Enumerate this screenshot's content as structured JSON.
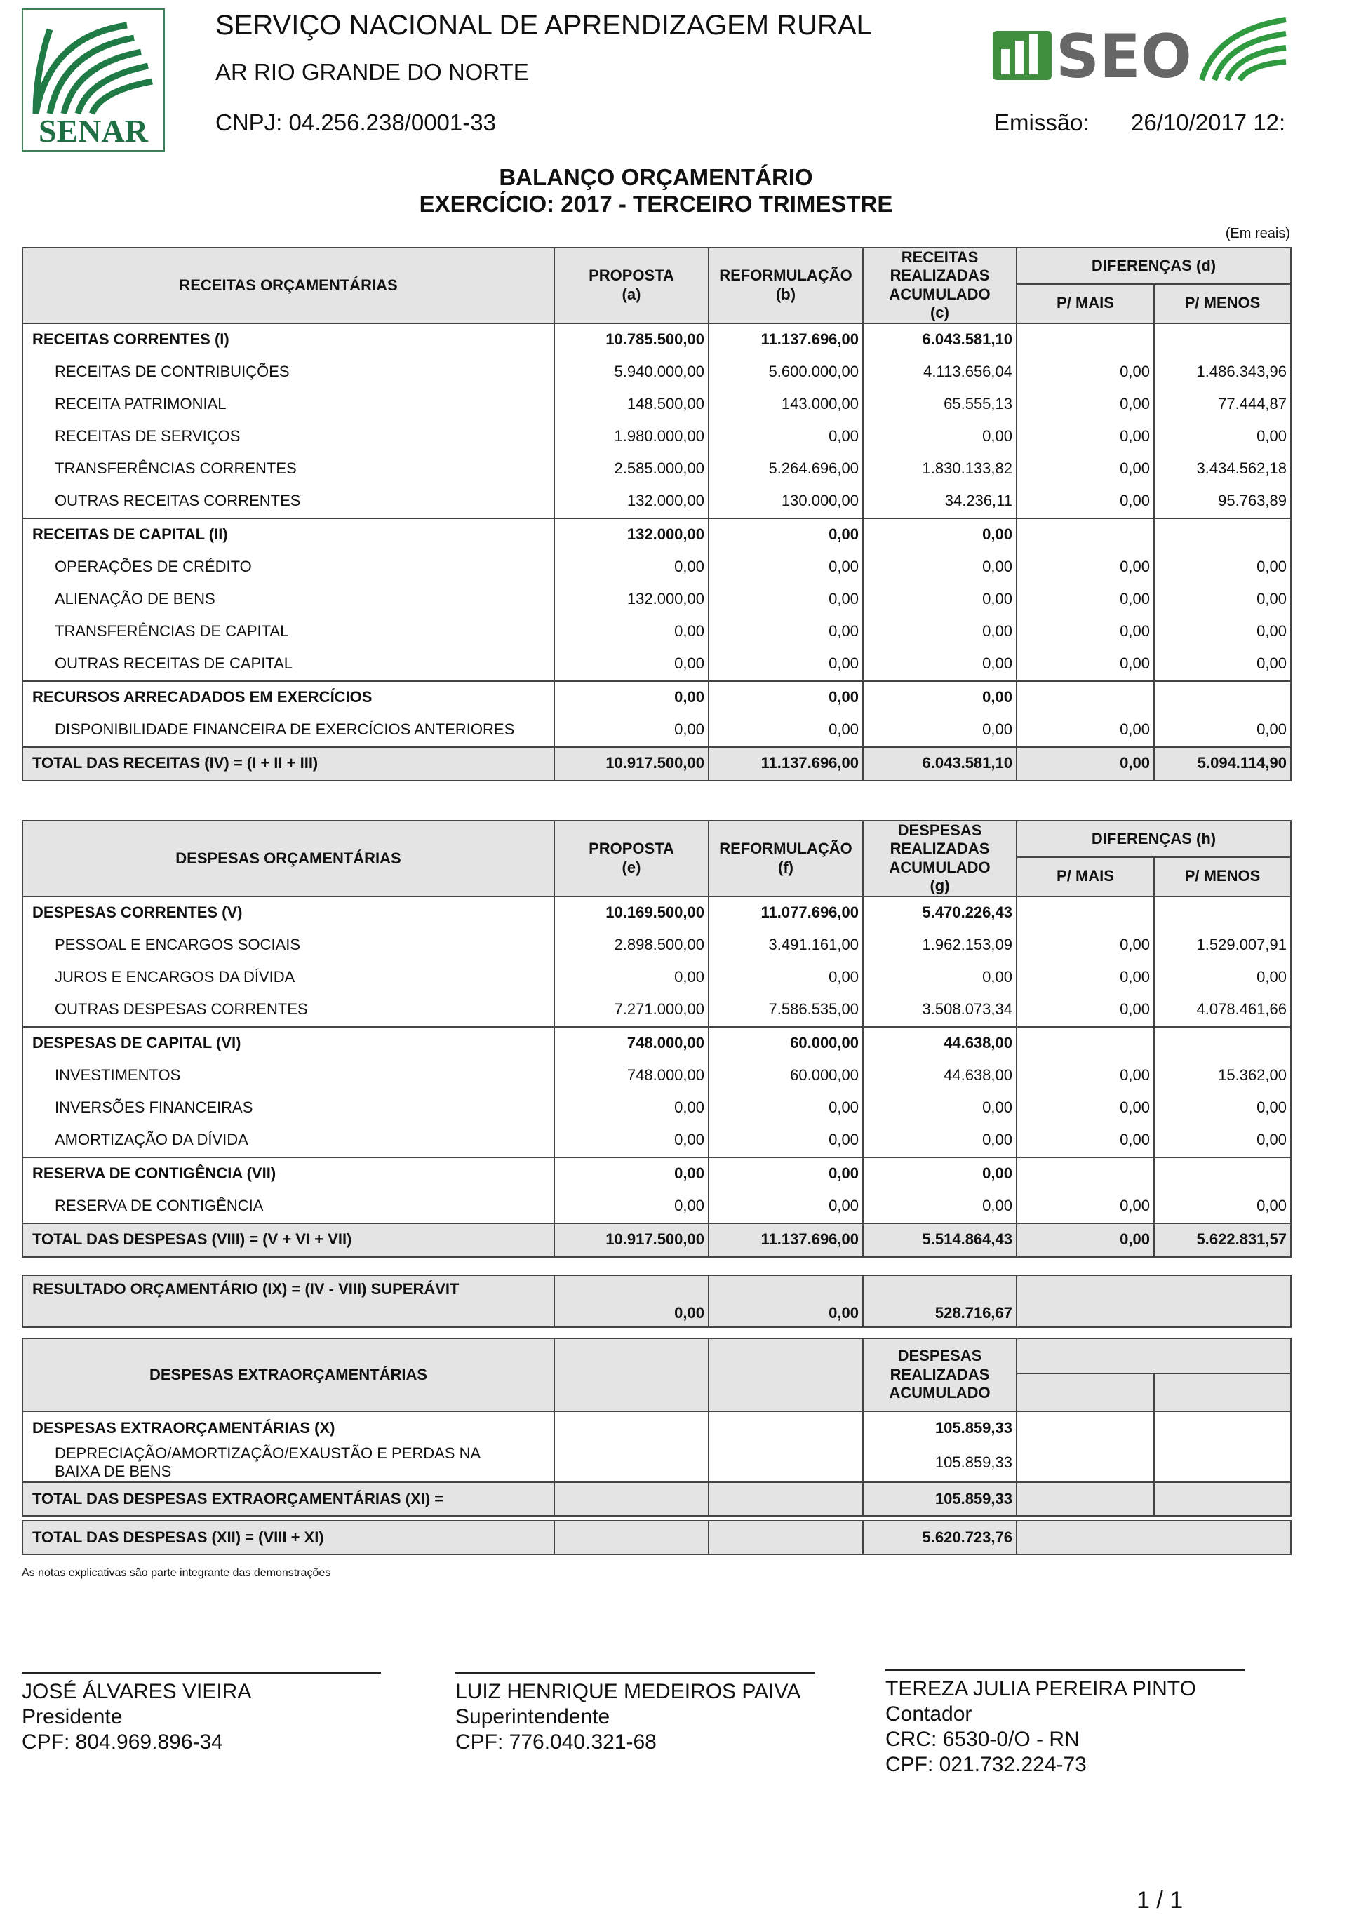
{
  "header": {
    "logo_left": "SENAR",
    "logo_right": "SEO",
    "org": "SERVIÇO NACIONAL DE APRENDIZAGEM RURAL",
    "unit": "AR RIO GRANDE DO NORTE",
    "cnpj": "CNPJ: 04.256.238/0001-33",
    "emissao_label": "Emissão:",
    "emissao": "26/10/2017 12:"
  },
  "title": "BALANÇO ORÇAMENTÁRIO",
  "subtitle": "EXERCÍCIO: 2017 - TERCEIRO TRIMESTRE",
  "unit_note": "(Em reais)",
  "receitas": {
    "header": {
      "label": "RECEITAS ORÇAMENTÁRIAS",
      "cols": [
        "PROPOSTA\n(a)",
        "REFORMULAÇÃO\n(b)",
        "RECEITAS\nREALIZADAS\nACUMULADO\n(c)"
      ],
      "group": "DIFERENÇAS (d)",
      "sub": [
        "P/ MAIS",
        "P/ MENOS"
      ]
    },
    "rows": [
      {
        "bold": true,
        "cells": [
          "RECEITAS CORRENTES (I)",
          "10.785.500,00",
          "11.137.696,00",
          "6.043.581,10",
          null,
          null
        ]
      },
      {
        "cells": [
          "RECEITAS DE CONTRIBUIÇÕES",
          "5.940.000,00",
          "5.600.000,00",
          "4.113.656,04",
          "0,00",
          "1.486.343,96"
        ]
      },
      {
        "cells": [
          "RECEITA PATRIMONIAL",
          "148.500,00",
          "143.000,00",
          "65.555,13",
          "0,00",
          "77.444,87"
        ]
      },
      {
        "cells": [
          "RECEITAS DE SERVIÇOS",
          "1.980.000,00",
          "0,00",
          "0,00",
          "0,00",
          "0,00"
        ]
      },
      {
        "cells": [
          "TRANSFERÊNCIAS CORRENTES",
          "2.585.000,00",
          "5.264.696,00",
          "1.830.133,82",
          "0,00",
          "3.434.562,18"
        ]
      },
      {
        "cells": [
          "OUTRAS RECEITAS CORRENTES",
          "132.000,00",
          "130.000,00",
          "34.236,11",
          "0,00",
          "95.763,89"
        ]
      },
      {
        "bold": true,
        "cells": [
          "RECEITAS DE CAPITAL (II)",
          "132.000,00",
          "0,00",
          "0,00",
          null,
          null
        ]
      },
      {
        "cells": [
          "OPERAÇÕES DE CRÉDITO",
          "0,00",
          "0,00",
          "0,00",
          "0,00",
          "0,00"
        ]
      },
      {
        "cells": [
          "ALIENAÇÃO DE BENS",
          "132.000,00",
          "0,00",
          "0,00",
          "0,00",
          "0,00"
        ]
      },
      {
        "cells": [
          "TRANSFERÊNCIAS DE CAPITAL",
          "0,00",
          "0,00",
          "0,00",
          "0,00",
          "0,00"
        ]
      },
      {
        "cells": [
          "OUTRAS RECEITAS DE CAPITAL",
          "0,00",
          "0,00",
          "0,00",
          "0,00",
          "0,00"
        ]
      },
      {
        "bold": true,
        "cells": [
          "RECURSOS ARRECADADOS EM EXERCÍCIOS",
          "0,00",
          "0,00",
          "0,00",
          null,
          null
        ]
      },
      {
        "cells": [
          "DISPONIBILIDADE FINANCEIRA DE EXERCÍCIOS ANTERIORES",
          "0,00",
          "0,00",
          "0,00",
          "0,00",
          "0,00"
        ]
      },
      {
        "bold": true,
        "shaded": true,
        "cells": [
          "TOTAL DAS RECEITAS (IV) = (I + II + III)",
          "10.917.500,00",
          "11.137.696,00",
          "6.043.581,10",
          "0,00",
          "5.094.114,90"
        ]
      }
    ]
  },
  "despesas": {
    "header": {
      "label": "DESPESAS ORÇAMENTÁRIAS",
      "cols": [
        "PROPOSTA\n(e)",
        "REFORMULAÇÃO\n(f)",
        "DESPESAS\nREALIZADAS\nACUMULADO\n(g)"
      ],
      "group": "DIFERENÇAS (h)",
      "sub": [
        "P/ MAIS",
        "P/ MENOS"
      ]
    },
    "rows": [
      {
        "bold": true,
        "cells": [
          "DESPESAS CORRENTES (V)",
          "10.169.500,00",
          "11.077.696,00",
          "5.470.226,43",
          null,
          null
        ]
      },
      {
        "cells": [
          "PESSOAL E ENCARGOS SOCIAIS",
          "2.898.500,00",
          "3.491.161,00",
          "1.962.153,09",
          "0,00",
          "1.529.007,91"
        ]
      },
      {
        "cells": [
          "JUROS E ENCARGOS DA DÍVIDA",
          "0,00",
          "0,00",
          "0,00",
          "0,00",
          "0,00"
        ]
      },
      {
        "cells": [
          "OUTRAS DESPESAS CORRENTES",
          "7.271.000,00",
          "7.586.535,00",
          "3.508.073,34",
          "0,00",
          "4.078.461,66"
        ]
      },
      {
        "bold": true,
        "cells": [
          "DESPESAS DE CAPITAL (VI)",
          "748.000,00",
          "60.000,00",
          "44.638,00",
          null,
          null
        ]
      },
      {
        "cells": [
          "INVESTIMENTOS",
          "748.000,00",
          "60.000,00",
          "44.638,00",
          "0,00",
          "15.362,00"
        ]
      },
      {
        "cells": [
          "INVERSÕES FINANCEIRAS",
          "0,00",
          "0,00",
          "0,00",
          "0,00",
          "0,00"
        ]
      },
      {
        "cells": [
          "AMORTIZAÇÃO DA DÍVIDA",
          "0,00",
          "0,00",
          "0,00",
          "0,00",
          "0,00"
        ]
      },
      {
        "bold": true,
        "cells": [
          "RESERVA DE CONTIGÊNCIA (VII)",
          "0,00",
          "0,00",
          "0,00",
          null,
          null
        ]
      },
      {
        "cells": [
          "RESERVA DE CONTIGÊNCIA",
          "0,00",
          "0,00",
          "0,00",
          "0,00",
          "0,00"
        ]
      },
      {
        "bold": true,
        "shaded": true,
        "cells": [
          "TOTAL DAS DESPESAS (VIII) = (V + VI + VII)",
          "10.917.500,00",
          "11.137.696,00",
          "5.514.864,43",
          "0,00",
          "5.622.831,57"
        ]
      }
    ]
  },
  "resultado": {
    "rows": [
      {
        "bold": true,
        "shaded": true,
        "cells": [
          "RESULTADO ORÇAMENTÁRIO (IX) = (IV - VIII)  SUPERÁVIT",
          "0,00",
          "0,00",
          "528.716,67",
          null,
          null
        ]
      }
    ]
  },
  "extra": {
    "header": {
      "label": "DESPESAS EXTRAORÇAMENTÁRIAS",
      "cols": [
        null,
        null,
        "DESPESAS\nREALIZADAS\nACUMULADO"
      ],
      "group": null,
      "sub": [
        null,
        null
      ]
    },
    "rows": [
      {
        "bold": true,
        "cells": [
          "DESPESAS EXTRAORÇAMENTÁRIAS (X)",
          null,
          null,
          "105.859,33",
          null,
          null
        ]
      },
      {
        "cells": [
          "DEPRECIAÇÃO/AMORTIZAÇÃO/EXAUSTÃO E PERDAS NA\nBAIXA DE BENS",
          null,
          null,
          "105.859,33",
          null,
          null
        ]
      },
      {
        "bold": true,
        "shaded": true,
        "cells": [
          "TOTAL DAS DESPESAS EXTRAORÇAMENTÁRIAS (XI) =",
          null,
          null,
          "105.859,33",
          null,
          null
        ]
      }
    ]
  },
  "total_geral": {
    "rows": [
      {
        "bold": true,
        "shaded": true,
        "cells": [
          "TOTAL DAS DESPESAS (XII) = (VIII + XI)",
          null,
          null,
          "5.620.723,76",
          null,
          null
        ]
      }
    ]
  },
  "note": "As notas explicativas são parte integrante das demonstrações",
  "signatures": [
    {
      "name": "JOSÉ ÁLVARES VIEIRA",
      "lines": [
        "Presidente",
        "CPF: 804.969.896-34"
      ]
    },
    {
      "name": "LUIZ HENRIQUE MEDEIROS PAIVA",
      "lines": [
        "Superintendente",
        "CPF: 776.040.321-68"
      ]
    },
    {
      "name": "TEREZA JULIA PEREIRA PINTO",
      "lines": [
        "Contador",
        "CRC: 6530-0/O - RN",
        "CPF: 021.732.224-73"
      ]
    }
  ],
  "page": "1  /  1"
}
